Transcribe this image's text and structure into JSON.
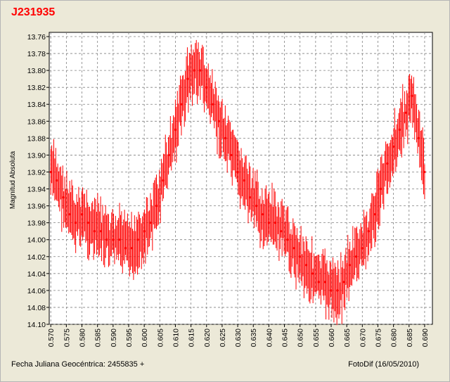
{
  "window": {
    "title": "J231935",
    "footer_left": "Fecha Juliana Geocéntrica: 2455835 +",
    "footer_right": "FotoDif (16/05/2010)"
  },
  "colors": {
    "series": "#ff0000",
    "background": "#ece9d8",
    "plot_area": "#ffffff",
    "grid": "#808080"
  },
  "chart_data": {
    "type": "scatter",
    "title": "J231935",
    "xlabel": "Fecha Juliana Geocéntrica: 2455835 +",
    "ylabel": "Magnitud Absoluta",
    "xlim": [
      0.5695,
      0.6925
    ],
    "ylim": [
      14.1,
      13.755
    ],
    "y_inverted": true,
    "grid": true,
    "x_ticks": [
      "0.570",
      "0.575",
      "0.580",
      "0.585",
      "0.590",
      "0.595",
      "0.600",
      "0.605",
      "0.610",
      "0.615",
      "0.620",
      "0.625",
      "0.630",
      "0.635",
      "0.640",
      "0.645",
      "0.650",
      "0.655",
      "0.660",
      "0.665",
      "0.670",
      "0.675",
      "0.680",
      "0.685",
      "0.690"
    ],
    "y_ticks": [
      "13.76",
      "13.78",
      "13.80",
      "13.82",
      "13.84",
      "13.86",
      "13.88",
      "13.90",
      "13.92",
      "13.94",
      "13.96",
      "13.98",
      "14.00",
      "14.02",
      "14.04",
      "14.06",
      "14.08",
      "14.10"
    ],
    "error_bars": "vertical, approx ±0.025 mag",
    "series": [
      {
        "x": [
          0.57,
          0.572,
          0.574,
          0.576,
          0.578,
          0.58,
          0.582,
          0.584,
          0.586,
          0.588,
          0.59,
          0.592,
          0.594,
          0.596,
          0.598,
          0.6,
          0.602,
          0.604,
          0.606,
          0.608,
          0.61,
          0.612,
          0.614,
          0.616,
          0.618,
          0.62,
          0.622,
          0.624,
          0.626,
          0.628,
          0.63,
          0.632,
          0.634,
          0.636,
          0.638,
          0.64,
          0.642,
          0.644,
          0.646,
          0.648,
          0.65,
          0.652,
          0.654,
          0.656,
          0.658,
          0.66,
          0.662,
          0.664,
          0.666,
          0.668,
          0.67,
          0.672,
          0.674,
          0.676,
          0.678,
          0.68,
          0.682,
          0.684,
          0.686,
          0.688,
          0.69
        ],
        "y": [
          13.92,
          13.93,
          13.95,
          13.97,
          13.98,
          13.97,
          13.98,
          13.99,
          13.99,
          14.0,
          14.0,
          14.0,
          14.01,
          14.01,
          14.0,
          13.99,
          13.98,
          13.96,
          13.93,
          13.9,
          13.87,
          13.84,
          13.81,
          13.8,
          13.8,
          13.82,
          13.84,
          13.86,
          13.88,
          13.9,
          13.92,
          13.93,
          13.95,
          13.96,
          13.97,
          13.98,
          13.98,
          13.99,
          14.0,
          14.01,
          14.02,
          14.03,
          14.04,
          14.05,
          14.05,
          14.06,
          14.06,
          14.05,
          14.03,
          14.02,
          14.01,
          13.99,
          13.97,
          13.94,
          13.91,
          13.89,
          13.87,
          13.85,
          13.83,
          13.88,
          13.92
        ],
        "error": 0.025
      }
    ]
  }
}
